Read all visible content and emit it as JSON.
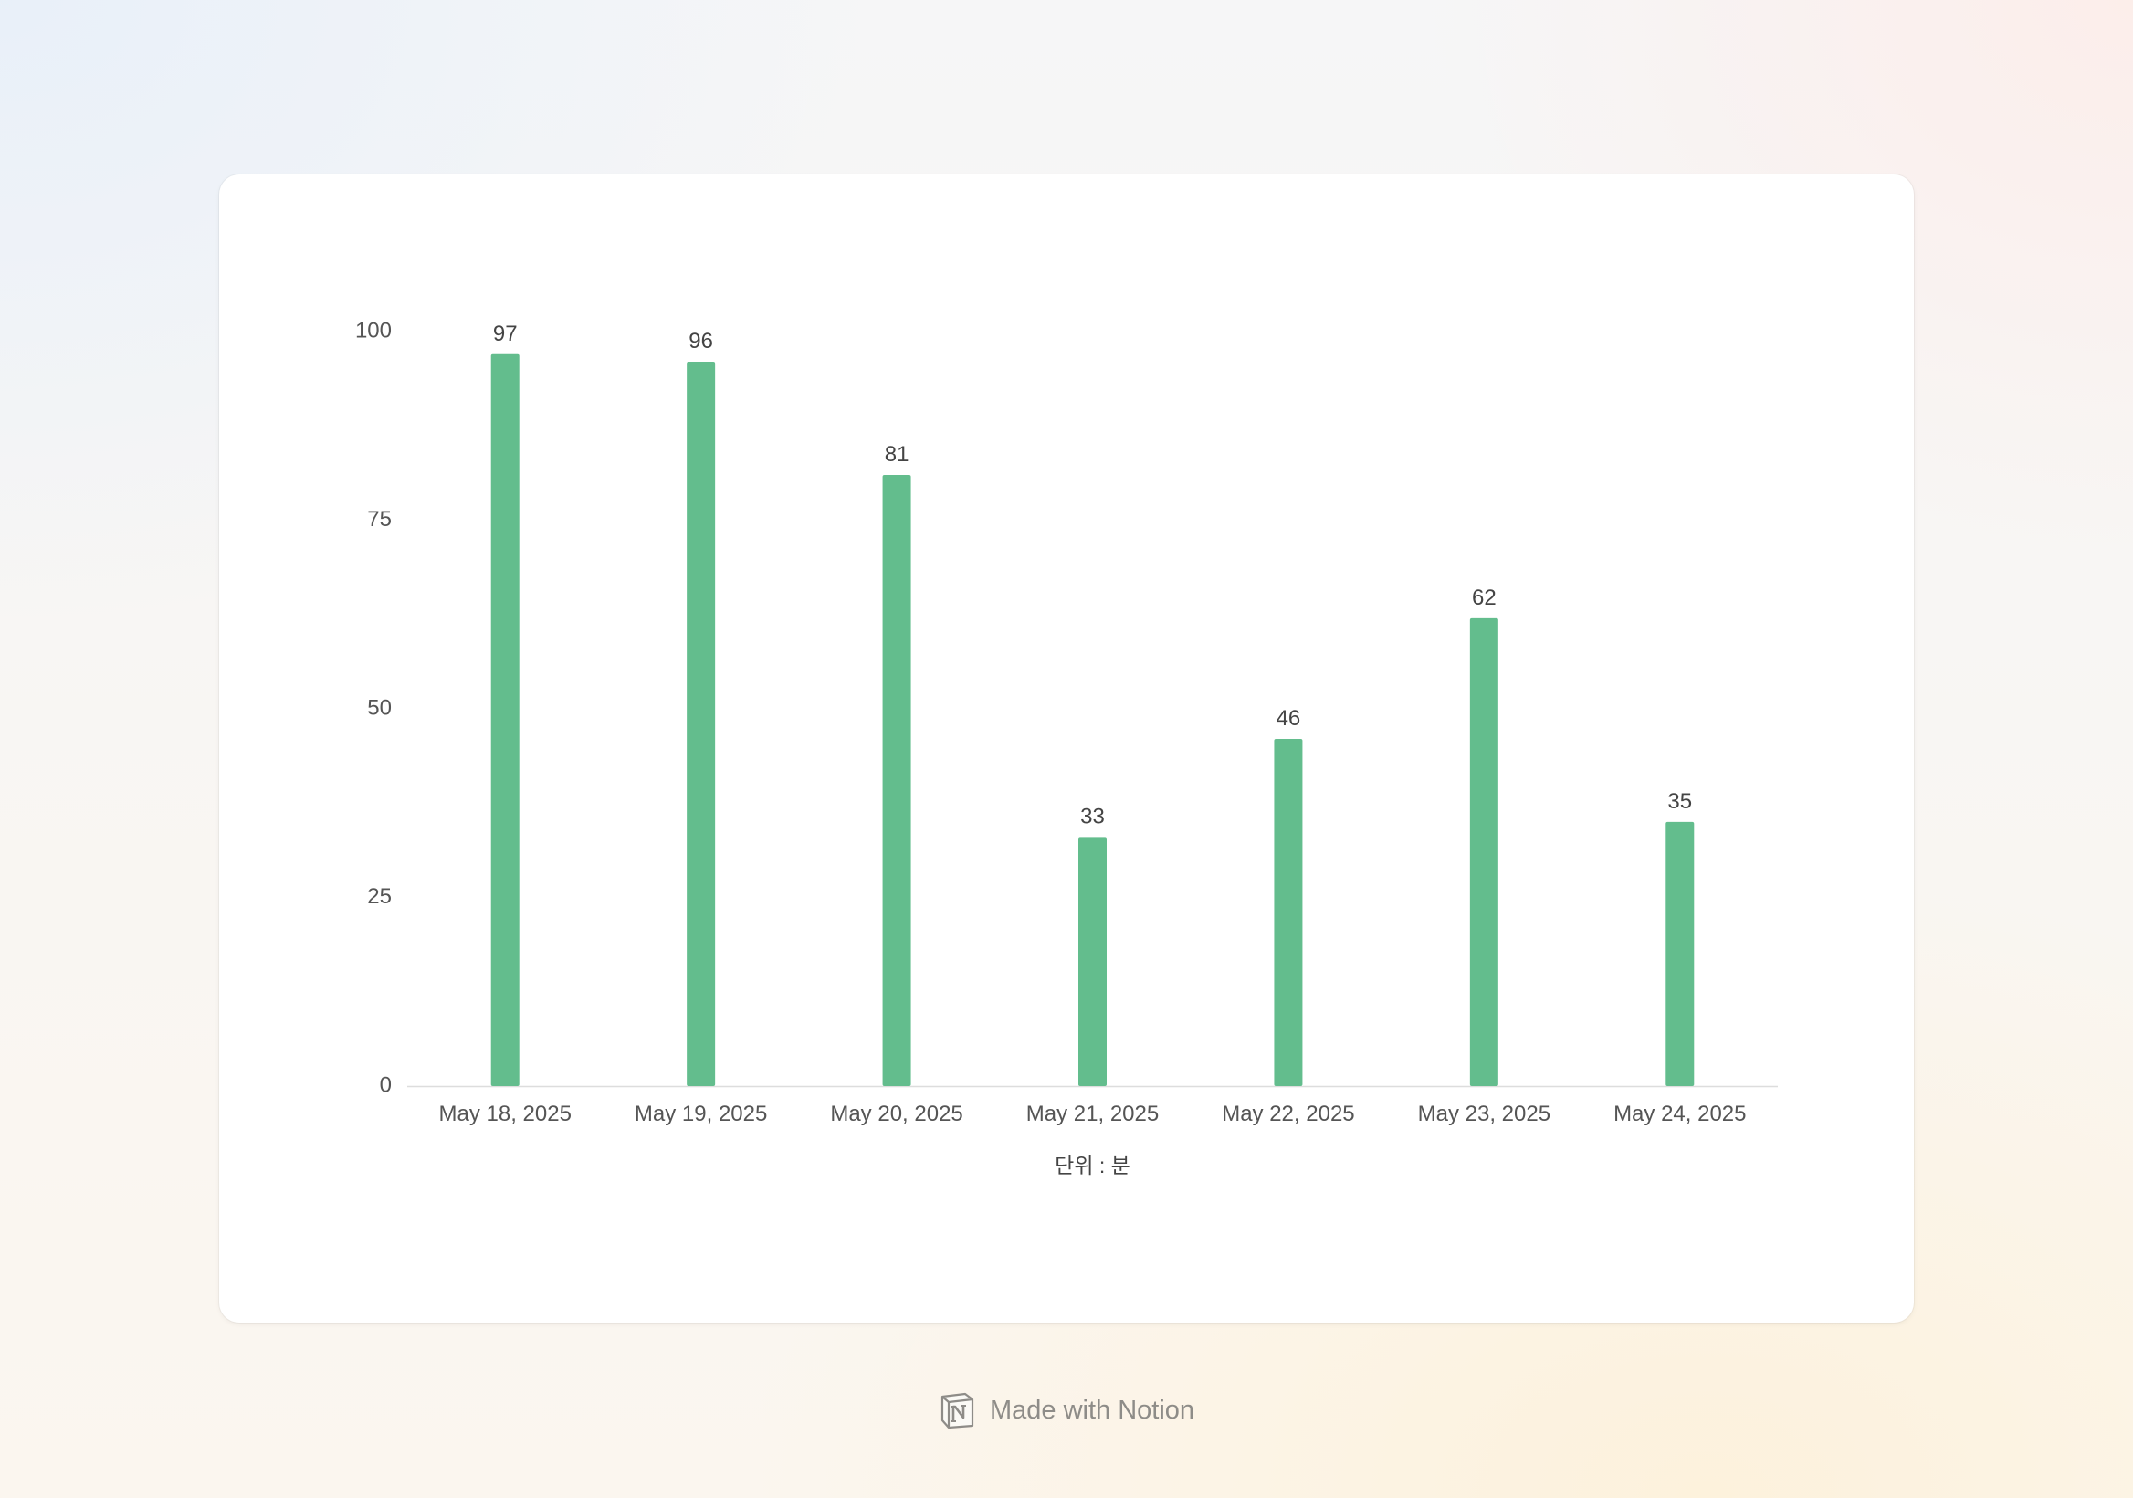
{
  "colors": {
    "bar": "#63bd8d",
    "axis_text": "#555555",
    "label_text": "#444444",
    "footer_text": "#8e8c88",
    "axis_line": "#dddddd"
  },
  "chart_data": {
    "type": "bar",
    "title": "",
    "xlabel": "단위 : 분",
    "ylabel": "",
    "categories": [
      "May 18, 2025",
      "May 19, 2025",
      "May 20, 2025",
      "May 21, 2025",
      "May 22, 2025",
      "May 23, 2025",
      "May 24, 2025"
    ],
    "values": [
      97,
      96,
      81,
      33,
      46,
      62,
      35
    ],
    "ylim": [
      0,
      100
    ],
    "yticks": [
      0,
      25,
      50,
      75,
      100
    ],
    "data_labels": true,
    "grid": false,
    "legend": "none"
  },
  "footer": {
    "icon": "notion-logo-icon",
    "text": "Made with Notion"
  }
}
